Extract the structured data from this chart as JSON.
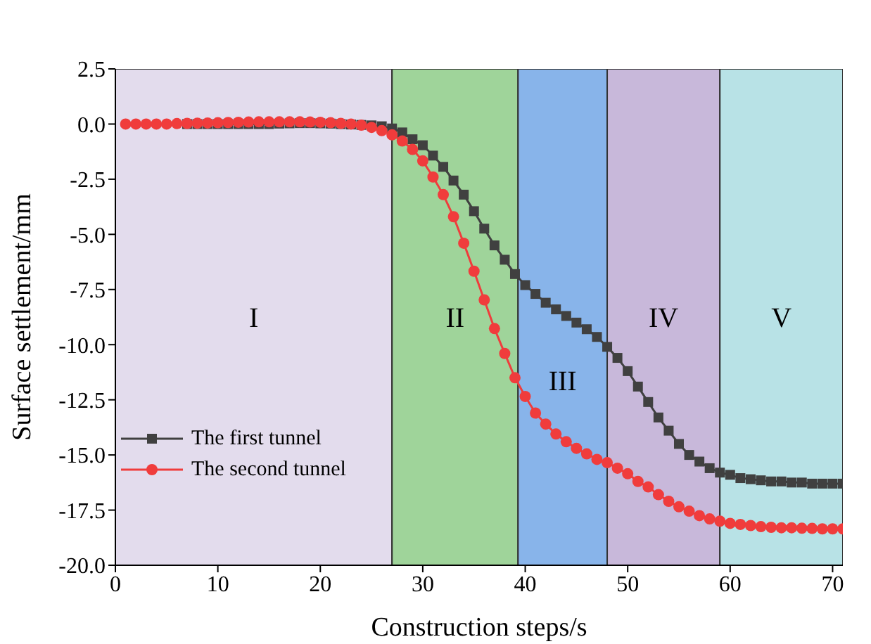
{
  "chart_data": {
    "type": "line",
    "xlabel": "Construction steps/s",
    "ylabel": "Surface settlement/mm",
    "x": [
      1,
      2,
      3,
      4,
      5,
      6,
      7,
      8,
      9,
      10,
      11,
      12,
      13,
      14,
      15,
      16,
      17,
      18,
      19,
      20,
      21,
      22,
      23,
      24,
      25,
      26,
      27,
      28,
      29,
      30,
      31,
      32,
      33,
      34,
      35,
      36,
      37,
      38,
      39,
      40,
      41,
      42,
      43,
      44,
      45,
      46,
      47,
      48,
      49,
      50,
      51,
      52,
      53,
      54,
      55,
      56,
      57,
      58,
      59,
      60,
      61,
      62,
      63,
      64,
      65,
      66,
      67,
      68,
      69,
      70,
      71
    ],
    "series": [
      {
        "name": "The first tunnel",
        "color": "#404040",
        "marker": "square",
        "values": [
          null,
          null,
          null,
          null,
          null,
          null,
          0,
          0,
          0,
          0,
          0,
          0,
          0,
          0,
          0,
          0.02,
          0.03,
          0.04,
          0.04,
          0.03,
          0.02,
          0,
          -0.02,
          -0.04,
          -0.06,
          -0.1,
          -0.2,
          -0.38,
          -0.69,
          -0.96,
          -1.43,
          -1.94,
          -2.56,
          -3.2,
          -3.95,
          -4.74,
          -5.5,
          -6.15,
          -6.8,
          -7.3,
          -7.7,
          -8.1,
          -8.4,
          -8.7,
          -9.0,
          -9.3,
          -9.65,
          -10.1,
          -10.6,
          -11.2,
          -11.9,
          -12.6,
          -13.3,
          -13.9,
          -14.5,
          -15.0,
          -15.3,
          -15.6,
          -15.8,
          -15.9,
          -16.05,
          -16.1,
          -16.15,
          -16.2,
          -16.2,
          -16.25,
          -16.25,
          -16.3,
          -16.3,
          -16.3,
          -16.3
        ]
      },
      {
        "name": "The second tunnel",
        "color": "#f03c3c",
        "marker": "circle",
        "values": [
          0,
          0,
          0,
          0,
          0,
          0.02,
          0.03,
          0.04,
          0.05,
          0.06,
          0.07,
          0.08,
          0.09,
          0.1,
          0.1,
          0.1,
          0.1,
          0.1,
          0.09,
          0.08,
          0.06,
          0.03,
          0,
          -0.05,
          -0.15,
          -0.3,
          -0.49,
          -0.77,
          -1.15,
          -1.67,
          -2.4,
          -3.2,
          -4.2,
          -5.4,
          -6.67,
          -7.97,
          -9.27,
          -10.4,
          -11.5,
          -12.35,
          -13.1,
          -13.6,
          -14.05,
          -14.4,
          -14.7,
          -14.95,
          -15.2,
          -15.35,
          -15.6,
          -15.85,
          -16.2,
          -16.45,
          -16.8,
          -17.1,
          -17.35,
          -17.55,
          -17.75,
          -17.9,
          -18.0,
          -18.1,
          -18.15,
          -18.2,
          -18.25,
          -18.28,
          -18.3,
          -18.3,
          -18.32,
          -18.33,
          -18.35,
          -18.35,
          -18.35
        ]
      }
    ],
    "xlim": [
      0,
      71
    ],
    "xticks": [
      0,
      10,
      20,
      30,
      40,
      50,
      60,
      70
    ],
    "ylim": [
      -20,
      2.5
    ],
    "yticks": [
      {
        "value": 2.5,
        "label": "2.5"
      },
      {
        "value": 0,
        "label": "0.0"
      },
      {
        "value": -2.5,
        "label": "-2.5"
      },
      {
        "value": -5,
        "label": "-5.0"
      },
      {
        "value": -7.5,
        "label": "-7.5"
      },
      {
        "value": -10,
        "label": "-10.0"
      },
      {
        "value": -12.5,
        "label": "-12.5"
      },
      {
        "value": -15,
        "label": "-15.0"
      },
      {
        "value": -17.5,
        "label": "-17.5"
      },
      {
        "value": -20,
        "label": "-20.0"
      }
    ],
    "bands": [
      {
        "axis": "x",
        "from": 0,
        "to": 27,
        "label": "I",
        "color": "#e3dced"
      },
      {
        "axis": "x",
        "from": 27,
        "to": 39.3,
        "label": "II",
        "color": "#9fd49a"
      },
      {
        "axis": "x",
        "from": 39.3,
        "to": 48,
        "label": "III",
        "color": "#88b4ea"
      },
      {
        "axis": "x",
        "from": 48,
        "to": 59,
        "label": "IV",
        "color": "#c8b8da"
      },
      {
        "axis": "x",
        "from": 59,
        "to": 71,
        "label": "V",
        "color": "#b8e2e6"
      }
    ],
    "legend": "bottom left",
    "grid": false,
    "line_style": "solid"
  }
}
